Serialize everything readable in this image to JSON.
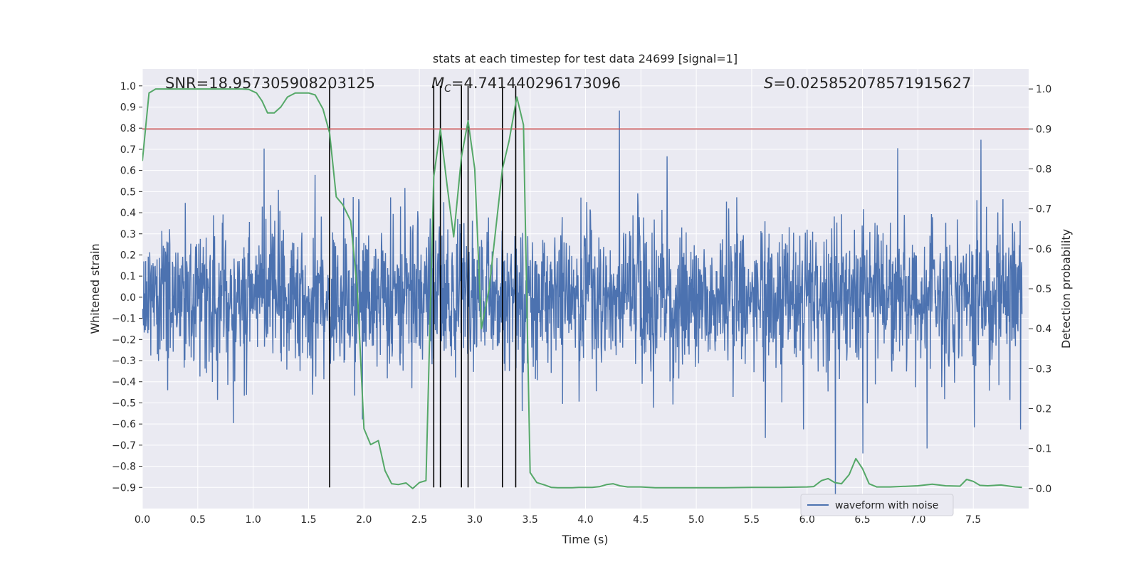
{
  "chart_data": {
    "type": "line",
    "title": "stats at each timestep for test data 24699 [signal=1]",
    "xlabel": "Time (s)",
    "ylabel": "Whitened strain",
    "ylabel_right": "Detection probability",
    "xlim": [
      0.0,
      8.0
    ],
    "ylim": [
      -1.0,
      1.08
    ],
    "ylim_right": [
      -0.05,
      1.05
    ],
    "x_ticks": [
      0.0,
      0.5,
      1.0,
      1.5,
      2.0,
      2.5,
      3.0,
      3.5,
      4.0,
      4.5,
      5.0,
      5.5,
      6.0,
      6.5,
      7.0,
      7.5
    ],
    "x_tick_labels": [
      "0.0",
      "0.5",
      "1.0",
      "1.5",
      "2.0",
      "2.5",
      "3.0",
      "3.5",
      "4.0",
      "4.5",
      "5.0",
      "5.5",
      "6.0",
      "6.5",
      "7.0",
      "7.5"
    ],
    "y_ticks": [
      -0.9,
      -0.8,
      -0.7,
      -0.6,
      -0.5,
      -0.4,
      -0.3,
      -0.2,
      -0.1,
      0.0,
      0.1,
      0.2,
      0.3,
      0.4,
      0.5,
      0.6,
      0.7,
      0.8,
      0.9,
      1.0
    ],
    "y_tick_labels": [
      "−0.9",
      "−0.8",
      "−0.7",
      "−0.6",
      "−0.5",
      "−0.4",
      "−0.3",
      "−0.2",
      "−0.1",
      "0.0",
      "0.1",
      "0.2",
      "0.3",
      "0.4",
      "0.5",
      "0.6",
      "0.7",
      "0.8",
      "0.9",
      "1.0"
    ],
    "y_right_ticks": [
      0.0,
      0.1,
      0.2,
      0.3,
      0.4,
      0.5,
      0.6,
      0.7,
      0.8,
      0.9,
      1.0
    ],
    "y_right_tick_labels": [
      "0.0",
      "0.1",
      "0.2",
      "0.3",
      "0.4",
      "0.5",
      "0.6",
      "0.7",
      "0.8",
      "0.9",
      "1.0"
    ],
    "annotations": [
      {
        "text": "SNR=18.957305908203125"
      },
      {
        "text": "M",
        "sub": "C",
        "rest": "=4.741440296173096"
      },
      {
        "text": "S",
        "rest": "=0.025852078571915627"
      }
    ],
    "threshold": {
      "axis": "right",
      "value": 0.9,
      "color": "#c44e52"
    },
    "vlines": [
      1.69,
      2.63,
      2.69,
      2.88,
      2.94,
      3.25,
      3.37
    ],
    "vline_range": [
      -0.9,
      1.0
    ],
    "legend": {
      "position": "bottom-right",
      "entries": [
        "waveform with noise"
      ]
    },
    "series": [
      {
        "name": "waveform with noise",
        "axis": "left",
        "color": "#4c72b0",
        "kind": "noise",
        "noise_seed": 24699,
        "noise_samples": 2400,
        "noise_sigma": 0.17,
        "noise_clip": 0.95
      },
      {
        "name": "detection probability",
        "axis": "right",
        "color": "#55a868",
        "x": [
          0.0,
          0.06,
          0.12,
          0.25,
          0.5,
          0.75,
          0.9,
          0.96,
          1.03,
          1.08,
          1.13,
          1.19,
          1.25,
          1.31,
          1.38,
          1.44,
          1.5,
          1.56,
          1.63,
          1.69,
          1.75,
          1.81,
          1.88,
          1.94,
          2.0,
          2.06,
          2.13,
          2.19,
          2.25,
          2.31,
          2.38,
          2.44,
          2.5,
          2.56,
          2.63,
          2.69,
          2.75,
          2.81,
          2.88,
          2.94,
          3.0,
          3.06,
          3.13,
          3.19,
          3.25,
          3.31,
          3.38,
          3.44,
          3.5,
          3.56,
          3.63,
          3.69,
          3.75,
          3.81,
          3.88,
          3.94,
          4.0,
          4.06,
          4.13,
          4.19,
          4.25,
          4.31,
          4.38,
          4.5,
          4.63,
          4.75,
          5.0,
          5.25,
          5.5,
          5.75,
          6.0,
          6.06,
          6.13,
          6.19,
          6.25,
          6.31,
          6.38,
          6.44,
          6.5,
          6.56,
          6.63,
          6.75,
          7.0,
          7.13,
          7.25,
          7.38,
          7.44,
          7.5,
          7.56,
          7.63,
          7.75,
          7.88,
          7.94
        ],
        "y": [
          0.82,
          0.99,
          1.0,
          1.0,
          1.0,
          1.0,
          1.0,
          0.999,
          0.99,
          0.97,
          0.94,
          0.94,
          0.955,
          0.98,
          0.99,
          0.99,
          0.99,
          0.985,
          0.95,
          0.89,
          0.73,
          0.71,
          0.67,
          0.5,
          0.15,
          0.11,
          0.12,
          0.045,
          0.012,
          0.01,
          0.014,
          0.0,
          0.015,
          0.02,
          0.78,
          0.9,
          0.76,
          0.63,
          0.83,
          0.92,
          0.8,
          0.4,
          0.5,
          0.65,
          0.8,
          0.87,
          0.98,
          0.91,
          0.04,
          0.015,
          0.009,
          0.003,
          0.002,
          0.002,
          0.002,
          0.003,
          0.003,
          0.003,
          0.005,
          0.01,
          0.012,
          0.007,
          0.004,
          0.004,
          0.002,
          0.002,
          0.002,
          0.002,
          0.003,
          0.003,
          0.004,
          0.005,
          0.02,
          0.025,
          0.015,
          0.012,
          0.035,
          0.075,
          0.05,
          0.012,
          0.004,
          0.004,
          0.007,
          0.011,
          0.007,
          0.006,
          0.023,
          0.018,
          0.008,
          0.007,
          0.009,
          0.004,
          0.003
        ]
      }
    ]
  }
}
